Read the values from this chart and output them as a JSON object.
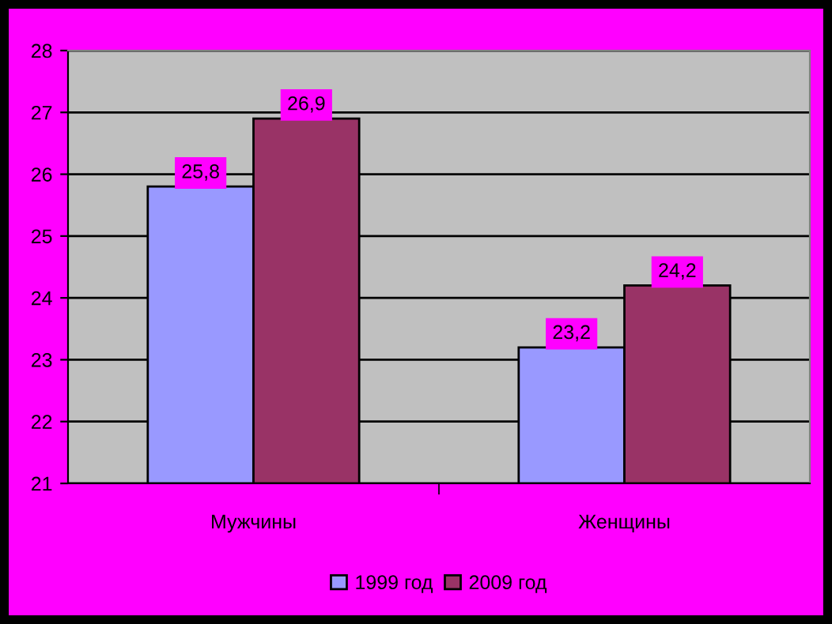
{
  "chart_data": {
    "type": "bar",
    "categories": [
      "Мужчины",
      "Женщины"
    ],
    "series": [
      {
        "name": "1999 год",
        "color": "#9999ff",
        "values": [
          25.8,
          23.2
        ],
        "value_labels": [
          "25,8",
          "23,2"
        ]
      },
      {
        "name": "2009 год",
        "color": "#993366",
        "values": [
          26.9,
          24.2
        ],
        "value_labels": [
          "26,9",
          "24,2"
        ]
      }
    ],
    "ylim": [
      21,
      28
    ],
    "yticks": [
      21,
      22,
      23,
      24,
      25,
      26,
      27,
      28
    ],
    "grid": "y",
    "legend": "bottom"
  }
}
